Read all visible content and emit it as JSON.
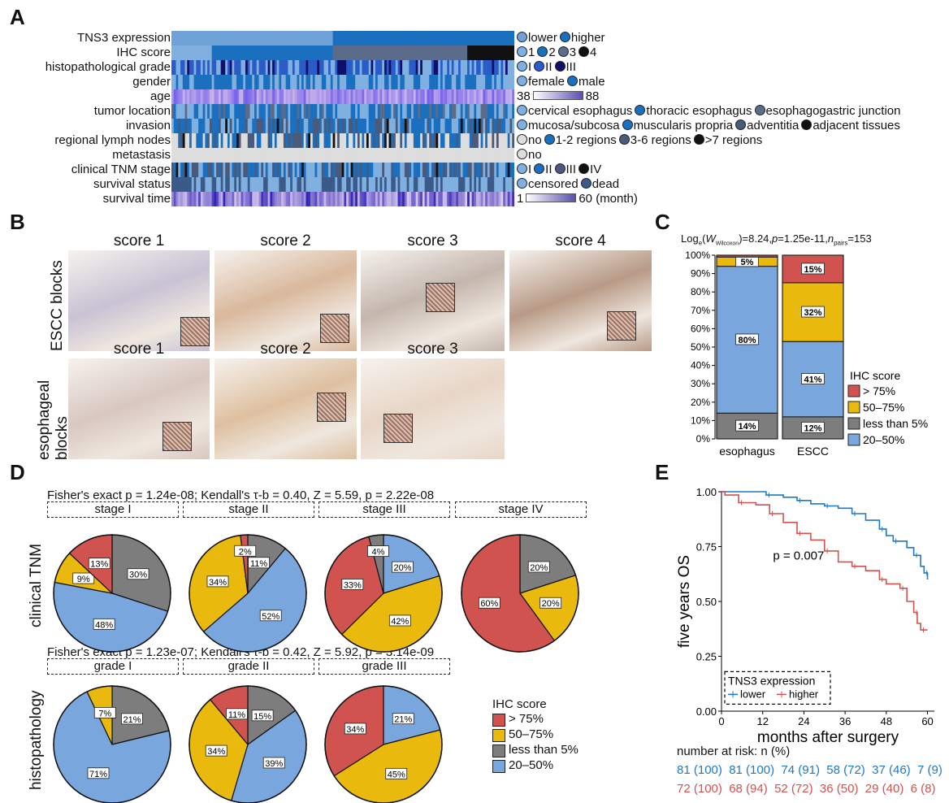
{
  "panels": {
    "A": "A",
    "B": "B",
    "C": "C",
    "D": "D",
    "E": "E"
  },
  "heatmap": {
    "rows": [
      "TNS3 expression",
      "IHC score",
      "histopathological grade",
      "gender",
      "age",
      "tumor location",
      "invasion",
      "regional lymph nodes",
      "metastasis",
      "clinical TNM stage",
      "survival status",
      "survival time"
    ],
    "legends": [
      {
        "items": [
          "lower",
          "higher"
        ],
        "colors": [
          "#6fa3d8",
          "#1a6fbf"
        ]
      },
      {
        "items": [
          "1",
          "2",
          "3",
          "4"
        ],
        "colors": [
          "#7fb0e0",
          "#1a6fbf",
          "#5b6b8a",
          "#111111"
        ]
      },
      {
        "items": [
          "I",
          "II",
          "III"
        ],
        "colors": [
          "#7fb0e0",
          "#2a5cc8",
          "#10106a"
        ]
      },
      {
        "items": [
          "female",
          "male"
        ],
        "colors": [
          "#7fb0e0",
          "#1a6fbf"
        ]
      },
      {
        "gradient": true,
        "min": "38",
        "max": "88",
        "unit": ""
      },
      {
        "items": [
          "cervical esophagus",
          "thoracic esophagus",
          "esophagogastric junction"
        ],
        "colors": [
          "#7fb0e0",
          "#1a6fbf",
          "#5b6b8a"
        ]
      },
      {
        "items": [
          "mucosa/subcosa",
          "muscularis propria",
          "adventitia",
          "adjacent tissues"
        ],
        "colors": [
          "#7fb0e0",
          "#1a6fbf",
          "#4a5a7a",
          "#111111"
        ]
      },
      {
        "items": [
          "no",
          "1-2 regions",
          "3-6 regions",
          ">7 regions"
        ],
        "colors": [
          "#dddddd",
          "#1a6fbf",
          "#4a5a7a",
          "#111111"
        ]
      },
      {
        "items": [
          "no"
        ],
        "colors": [
          "#dddddd"
        ]
      },
      {
        "items": [
          "I",
          "II",
          "III",
          "IV"
        ],
        "colors": [
          "#7fb0e0",
          "#1a6fbf",
          "#4a5a7a",
          "#111111"
        ]
      },
      {
        "items": [
          "censored",
          "dead"
        ],
        "colors": [
          "#7fb0e0",
          "#3a5a8a"
        ]
      },
      {
        "gradient": true,
        "min": "1",
        "max": "60",
        "unit": "(month)"
      }
    ]
  },
  "panelB": {
    "row1_label": "ESCC blocks",
    "row2_label": "esophageal blocks",
    "row2_label_line1": "esophageal",
    "row2_label_line2": "blocks",
    "row1_titles": [
      "score 1",
      "score 2",
      "score 3",
      "score 4"
    ],
    "row2_titles": [
      "score 1",
      "score 2",
      "score 3"
    ]
  },
  "panelC": {
    "title_prefix": "Log",
    "title_sub": "e",
    "title_w": "W",
    "title_wsub": "Wilcoxon",
    "title_rest": ")=8.24,",
    "title_p": "p",
    "title_pval": "=1.25e-11,",
    "title_n": "n",
    "title_nsub": "pairs",
    "title_nval": "=153",
    "yticks": [
      "0%",
      "10%",
      "20%",
      "30%",
      "40%",
      "50%",
      "60%",
      "70%",
      "80%",
      "90%",
      "100%"
    ],
    "legend_title": "IHC score",
    "legend": [
      {
        "label": "> 75%",
        "color": "#d0534f"
      },
      {
        "label": "50–75%",
        "color": "#e9b90d"
      },
      {
        "label": "less than 5%",
        "color": "#7d7d7d"
      },
      {
        "label": "20–50%",
        "color": "#7aa6de"
      }
    ]
  },
  "chart_data": [
    {
      "type": "bar",
      "stacked": true,
      "categories": [
        "esophagus",
        "ESCC"
      ],
      "series": [
        {
          "name": "less than 5%",
          "values": [
            14,
            12
          ],
          "color": "#7d7d7d",
          "labels": [
            "14%",
            "12%"
          ]
        },
        {
          "name": "20–50%",
          "values": [
            80,
            41
          ],
          "color": "#7aa6de",
          "labels": [
            "80%",
            "41%"
          ]
        },
        {
          "name": "50–75%",
          "values": [
            5,
            32
          ],
          "color": "#e9b90d",
          "labels": [
            "5%",
            "32%"
          ]
        },
        {
          "name": "> 75%",
          "values": [
            1,
            15
          ],
          "color": "#d0534f",
          "labels": [
            "",
            "15%"
          ]
        }
      ],
      "ylim": [
        0,
        100
      ]
    },
    {
      "type": "pie",
      "group": "clinical TNM",
      "stat": "Fisher's exact p = 1.24e-08; Kendall's τ-b = 0.40, Z = 5.59, p = 2.22e-08",
      "pies": [
        {
          "title": "stage I",
          "slices": [
            {
              "name": "less than 5%",
              "value": 30
            },
            {
              "name": "20–50%",
              "value": 48
            },
            {
              "name": "50–75%",
              "value": 9
            },
            {
              "name": "> 75%",
              "value": 13
            }
          ]
        },
        {
          "title": "stage II",
          "slices": [
            {
              "name": "less than 5%",
              "value": 11
            },
            {
              "name": "20–50%",
              "value": 52
            },
            {
              "name": "50–75%",
              "value": 34
            },
            {
              "name": "> 75%",
              "value": 2
            }
          ]
        },
        {
          "title": "stage III",
          "slices": [
            {
              "name": "20–50%",
              "value": 20
            },
            {
              "name": "50–75%",
              "value": 42
            },
            {
              "name": "> 75%",
              "value": 33
            },
            {
              "name": "less than 5%",
              "value": 4
            }
          ]
        },
        {
          "title": "stage IV",
          "slices": [
            {
              "name": "less than 5%",
              "value": 20
            },
            {
              "name": "50–75%",
              "value": 20
            },
            {
              "name": "> 75%",
              "value": 60
            }
          ]
        }
      ]
    },
    {
      "type": "pie",
      "group": "histopathology",
      "stat": "Fisher's exact p = 1.23e-07; Kendall's τ-b = 0.42, Z = 5.92, p = 3.14e-09",
      "pies": [
        {
          "title": "grade I",
          "slices": [
            {
              "name": "less than 5%",
              "value": 21
            },
            {
              "name": "20–50%",
              "value": 71
            },
            {
              "name": "50–75%",
              "value": 7
            }
          ]
        },
        {
          "title": "grade II",
          "slices": [
            {
              "name": "less than 5%",
              "value": 15
            },
            {
              "name": "20–50%",
              "value": 39
            },
            {
              "name": "50–75%",
              "value": 34
            },
            {
              "name": "> 75%",
              "value": 11
            }
          ]
        },
        {
          "title": "grade III",
          "slices": [
            {
              "name": "20–50%",
              "value": 21
            },
            {
              "name": "50–75%",
              "value": 45
            },
            {
              "name": "> 75%",
              "value": 34
            }
          ]
        }
      ]
    },
    {
      "type": "line",
      "subtype": "kaplan-meier",
      "xlabel": "months after surgery",
      "ylabel": "five years OS",
      "xticks": [
        0,
        12,
        24,
        36,
        48,
        60
      ],
      "yticks": [
        "0.00",
        "0.25",
        "0.50",
        "0.75",
        "1.00"
      ],
      "xlim": [
        0,
        62
      ],
      "ylim": [
        0,
        1
      ],
      "annotation": "p = 0.007",
      "legend_title": "TNS3 expression",
      "series": [
        {
          "name": "lower",
          "color": "#1f78c4",
          "points": [
            [
              0,
              1
            ],
            [
              12,
              1
            ],
            [
              13,
              0.985
            ],
            [
              18,
              0.975
            ],
            [
              22,
              0.96
            ],
            [
              26,
              0.945
            ],
            [
              30,
              0.935
            ],
            [
              34,
              0.925
            ],
            [
              38,
              0.9
            ],
            [
              42,
              0.87
            ],
            [
              46,
              0.83
            ],
            [
              48,
              0.8
            ],
            [
              50,
              0.775
            ],
            [
              54,
              0.745
            ],
            [
              56,
              0.71
            ],
            [
              58,
              0.66
            ],
            [
              59,
              0.63
            ],
            [
              60,
              0.6
            ]
          ]
        },
        {
          "name": "higher",
          "color": "#d0534f",
          "points": [
            [
              0,
              1
            ],
            [
              1,
              0.985
            ],
            [
              5,
              0.95
            ],
            [
              10,
              0.94
            ],
            [
              14,
              0.9
            ],
            [
              18,
              0.86
            ],
            [
              22,
              0.81
            ],
            [
              26,
              0.78
            ],
            [
              30,
              0.73
            ],
            [
              34,
              0.68
            ],
            [
              38,
              0.66
            ],
            [
              42,
              0.64
            ],
            [
              46,
              0.6
            ],
            [
              48,
              0.58
            ],
            [
              52,
              0.56
            ],
            [
              54,
              0.5
            ],
            [
              56,
              0.45
            ],
            [
              57,
              0.4
            ],
            [
              58,
              0.37
            ],
            [
              60,
              0.37
            ]
          ]
        }
      ],
      "risk_title": "number at risk: n (%)",
      "risk_lower": "81 (100)  81 (100)  74 (91)  58 (72)  37 (46)  7 (9)",
      "risk_higher": "72 (100)  68 (94)  52 (72)  36 (50)  29 (40)  6 (8)"
    }
  ],
  "panelD": {
    "row1_label": "clinical TNM",
    "row2_label": "histopathology",
    "legend_title": "IHC score",
    "legend": [
      {
        "label": "> 75%",
        "color": "#d0534f"
      },
      {
        "label": "50–75%",
        "color": "#e9b90d"
      },
      {
        "label": "less than 5%",
        "color": "#7d7d7d"
      },
      {
        "label": "20–50%",
        "color": "#7aa6de"
      }
    ]
  },
  "colors": {
    "red": "#d0534f",
    "yellow": "#e9b90d",
    "gray": "#7d7d7d",
    "blue": "#7aa6de"
  }
}
